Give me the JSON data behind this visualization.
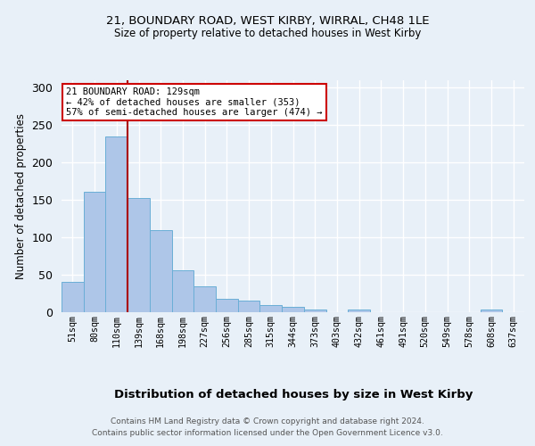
{
  "title1": "21, BOUNDARY ROAD, WEST KIRBY, WIRRAL, CH48 1LE",
  "title2": "Size of property relative to detached houses in West Kirby",
  "xlabel": "Distribution of detached houses by size in West Kirby",
  "ylabel": "Number of detached properties",
  "categories": [
    "51sqm",
    "80sqm",
    "110sqm",
    "139sqm",
    "168sqm",
    "198sqm",
    "227sqm",
    "256sqm",
    "285sqm",
    "315sqm",
    "344sqm",
    "373sqm",
    "403sqm",
    "432sqm",
    "461sqm",
    "491sqm",
    "520sqm",
    "549sqm",
    "578sqm",
    "608sqm",
    "637sqm"
  ],
  "values": [
    40,
    161,
    235,
    153,
    110,
    56,
    35,
    18,
    15,
    9,
    7,
    3,
    0,
    3,
    0,
    0,
    0,
    0,
    0,
    4,
    0
  ],
  "bar_color": "#aec6e8",
  "bar_edge_color": "#6aaed6",
  "annotation_text": "21 BOUNDARY ROAD: 129sqm\n← 42% of detached houses are smaller (353)\n57% of semi-detached houses are larger (474) →",
  "annotation_box_color": "#ffffff",
  "annotation_box_edge_color": "#cc0000",
  "footer1": "Contains HM Land Registry data © Crown copyright and database right 2024.",
  "footer2": "Contains public sector information licensed under the Open Government Licence v3.0.",
  "ylim": [
    0,
    310
  ],
  "background_color": "#e8f0f8",
  "plot_bg_color": "#e8f0f8"
}
